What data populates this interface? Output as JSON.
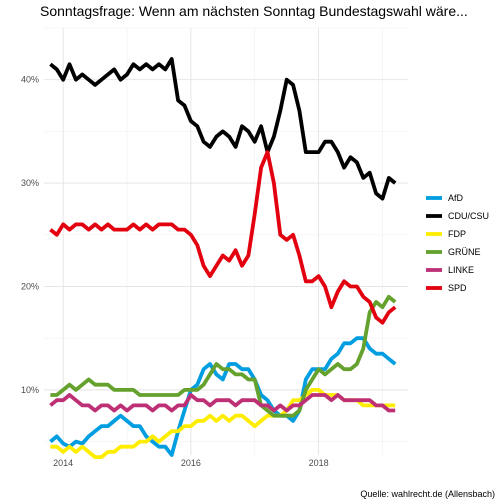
{
  "chart_data": {
    "type": "line",
    "title": "Sonntagsfrage: Wenn am nächsten Sonntag Bundestagswahl wäre...",
    "caption": "Quelle: wahlrecht.de (Allensbach)",
    "xlabel": "",
    "ylabel": "",
    "xlim": [
      2013.7,
      2019.4
    ],
    "ylim": [
      3.7,
      45
    ],
    "x_ticks": [
      {
        "value": 2014,
        "label": "2014"
      },
      {
        "value": 2016,
        "label": "2016"
      },
      {
        "value": 2018,
        "label": "2018"
      }
    ],
    "y_ticks": [
      {
        "value": 10,
        "label": "10%"
      },
      {
        "value": 20,
        "label": "20%"
      },
      {
        "value": 30,
        "label": "30%"
      },
      {
        "value": 40,
        "label": "40%"
      }
    ],
    "grid": true,
    "legend_position": "right",
    "series": [
      {
        "name": "AfD",
        "color": "#009ee0",
        "x": [
          2013.8,
          2013.9,
          2014.0,
          2014.1,
          2014.2,
          2014.3,
          2014.4,
          2014.5,
          2014.6,
          2014.7,
          2014.8,
          2014.9,
          2015.0,
          2015.1,
          2015.2,
          2015.3,
          2015.4,
          2015.5,
          2015.6,
          2015.7,
          2015.8,
          2015.9,
          2016.0,
          2016.1,
          2016.2,
          2016.3,
          2016.4,
          2016.5,
          2016.6,
          2016.7,
          2016.8,
          2016.9,
          2017.0,
          2017.1,
          2017.2,
          2017.3,
          2017.4,
          2017.5,
          2017.6,
          2017.7,
          2017.8,
          2017.9,
          2018.0,
          2018.1,
          2018.2,
          2018.3,
          2018.4,
          2018.5,
          2018.6,
          2018.7,
          2018.8,
          2018.9,
          2019.0,
          2019.1,
          2019.2
        ],
        "values": [
          5,
          5.5,
          4.8,
          4.5,
          5,
          4.8,
          5.5,
          6,
          6.5,
          6.5,
          7,
          7.5,
          7,
          6.5,
          6.5,
          5.5,
          5,
          4.5,
          4.5,
          3.7,
          6,
          8,
          10,
          10.5,
          12,
          12.5,
          11.5,
          11,
          12.5,
          12.5,
          12,
          12,
          11,
          9.5,
          9,
          8,
          7.5,
          7.5,
          7,
          8,
          11,
          12,
          12,
          12,
          13,
          13.5,
          14.5,
          14.5,
          15,
          15,
          14,
          13.5,
          13.5,
          13,
          12.5
        ]
      },
      {
        "name": "CDU/CSU",
        "color": "#000000",
        "x": [
          2013.8,
          2013.9,
          2014.0,
          2014.1,
          2014.2,
          2014.3,
          2014.4,
          2014.5,
          2014.6,
          2014.7,
          2014.8,
          2014.9,
          2015.0,
          2015.1,
          2015.2,
          2015.3,
          2015.4,
          2015.5,
          2015.6,
          2015.7,
          2015.8,
          2015.9,
          2016.0,
          2016.1,
          2016.2,
          2016.3,
          2016.4,
          2016.5,
          2016.6,
          2016.7,
          2016.8,
          2016.9,
          2017.0,
          2017.1,
          2017.2,
          2017.3,
          2017.4,
          2017.5,
          2017.6,
          2017.7,
          2017.8,
          2017.9,
          2018.0,
          2018.1,
          2018.2,
          2018.3,
          2018.4,
          2018.5,
          2018.6,
          2018.7,
          2018.8,
          2018.9,
          2019.0,
          2019.1,
          2019.2
        ],
        "values": [
          41.5,
          41,
          40,
          41.5,
          40,
          40.5,
          40,
          39.5,
          40,
          40.5,
          41,
          40,
          40.5,
          41.5,
          41,
          41.5,
          41,
          41.5,
          41,
          42,
          38,
          37.5,
          36,
          35.5,
          34,
          33.5,
          34.5,
          35,
          34.5,
          33.5,
          35.5,
          35,
          34,
          35.5,
          33,
          34.5,
          37,
          40,
          39.5,
          37,
          33,
          33,
          33,
          34,
          34,
          33,
          31.5,
          32.5,
          32,
          30.5,
          31,
          29,
          28.5,
          30.5,
          30
        ]
      },
      {
        "name": "FDP",
        "color": "#ffed00",
        "x": [
          2013.8,
          2013.9,
          2014.0,
          2014.1,
          2014.2,
          2014.3,
          2014.4,
          2014.5,
          2014.6,
          2014.7,
          2014.8,
          2014.9,
          2015.0,
          2015.1,
          2015.2,
          2015.3,
          2015.4,
          2015.5,
          2015.6,
          2015.7,
          2015.8,
          2015.9,
          2016.0,
          2016.1,
          2016.2,
          2016.3,
          2016.4,
          2016.5,
          2016.6,
          2016.7,
          2016.8,
          2016.9,
          2017.0,
          2017.1,
          2017.2,
          2017.3,
          2017.4,
          2017.5,
          2017.6,
          2017.7,
          2017.8,
          2017.9,
          2018.0,
          2018.1,
          2018.2,
          2018.3,
          2018.4,
          2018.5,
          2018.6,
          2018.7,
          2018.8,
          2018.9,
          2019.0,
          2019.1,
          2019.2
        ],
        "values": [
          4.5,
          4.5,
          4,
          4.5,
          4,
          4.5,
          4,
          3.5,
          3.5,
          4,
          4,
          4.5,
          4.5,
          4.5,
          5,
          5,
          5.5,
          5,
          5.5,
          6,
          6,
          6.5,
          6.5,
          7,
          7,
          7.5,
          7,
          7.5,
          7,
          7.5,
          7.5,
          7,
          6.5,
          7,
          7.5,
          7.5,
          7.5,
          8,
          9,
          9,
          9.5,
          10,
          10,
          9.5,
          9.5,
          9.5,
          9,
          9,
          9,
          8.5,
          8.5,
          8.5,
          8.5,
          8.5,
          8.5
        ]
      },
      {
        "name": "GRÜNE",
        "color": "#64a12d",
        "x": [
          2013.8,
          2013.9,
          2014.0,
          2014.1,
          2014.2,
          2014.3,
          2014.4,
          2014.5,
          2014.6,
          2014.7,
          2014.8,
          2014.9,
          2015.0,
          2015.1,
          2015.2,
          2015.3,
          2015.4,
          2015.5,
          2015.6,
          2015.7,
          2015.8,
          2015.9,
          2016.0,
          2016.1,
          2016.2,
          2016.3,
          2016.4,
          2016.5,
          2016.6,
          2016.7,
          2016.8,
          2016.9,
          2017.0,
          2017.1,
          2017.2,
          2017.3,
          2017.4,
          2017.5,
          2017.6,
          2017.7,
          2017.8,
          2017.9,
          2018.0,
          2018.1,
          2018.2,
          2018.3,
          2018.4,
          2018.5,
          2018.6,
          2018.7,
          2018.8,
          2018.9,
          2019.0,
          2019.1,
          2019.2
        ],
        "values": [
          9.5,
          9.5,
          10,
          10.5,
          10,
          10.5,
          11,
          10.5,
          10.5,
          10.5,
          10,
          10,
          10,
          10,
          9.5,
          9.5,
          9.5,
          9.5,
          9.5,
          9.5,
          9.5,
          10,
          10,
          10,
          10.5,
          11.5,
          12.5,
          12,
          12,
          11.5,
          11.5,
          11,
          11,
          8.5,
          8,
          7.5,
          7.5,
          7.5,
          7.5,
          8,
          10,
          11,
          12,
          11.5,
          12,
          12.5,
          12,
          12,
          12.5,
          14,
          17.5,
          18.5,
          18,
          19,
          18.5
        ]
      },
      {
        "name": "LINKE",
        "color": "#be3075",
        "x": [
          2013.8,
          2013.9,
          2014.0,
          2014.1,
          2014.2,
          2014.3,
          2014.4,
          2014.5,
          2014.6,
          2014.7,
          2014.8,
          2014.9,
          2015.0,
          2015.1,
          2015.2,
          2015.3,
          2015.4,
          2015.5,
          2015.6,
          2015.7,
          2015.8,
          2015.9,
          2016.0,
          2016.1,
          2016.2,
          2016.3,
          2016.4,
          2016.5,
          2016.6,
          2016.7,
          2016.8,
          2016.9,
          2017.0,
          2017.1,
          2017.2,
          2017.3,
          2017.4,
          2017.5,
          2017.6,
          2017.7,
          2017.8,
          2017.9,
          2018.0,
          2018.1,
          2018.2,
          2018.3,
          2018.4,
          2018.5,
          2018.6,
          2018.7,
          2018.8,
          2018.9,
          2019.0,
          2019.1,
          2019.2
        ],
        "values": [
          8.5,
          9,
          9,
          9.5,
          9,
          8.5,
          8.5,
          8,
          8.5,
          8.5,
          8,
          8.5,
          8,
          8.5,
          8.5,
          8.5,
          8,
          8.5,
          8.5,
          8,
          8.5,
          8.5,
          9.5,
          9,
          9,
          8.5,
          9,
          9,
          9,
          8.5,
          9,
          9,
          9,
          8.5,
          8.5,
          8,
          8.5,
          8,
          8.5,
          8.5,
          9,
          9.5,
          9.5,
          9.5,
          9,
          9.5,
          9,
          9,
          9,
          9,
          9,
          8.5,
          8.5,
          8,
          8
        ]
      },
      {
        "name": "SPD",
        "color": "#e3000f",
        "x": [
          2013.8,
          2013.9,
          2014.0,
          2014.1,
          2014.2,
          2014.3,
          2014.4,
          2014.5,
          2014.6,
          2014.7,
          2014.8,
          2014.9,
          2015.0,
          2015.1,
          2015.2,
          2015.3,
          2015.4,
          2015.5,
          2015.6,
          2015.7,
          2015.8,
          2015.9,
          2016.0,
          2016.1,
          2016.2,
          2016.3,
          2016.4,
          2016.5,
          2016.6,
          2016.7,
          2016.8,
          2016.9,
          2017.0,
          2017.1,
          2017.2,
          2017.3,
          2017.4,
          2017.5,
          2017.6,
          2017.7,
          2017.8,
          2017.9,
          2018.0,
          2018.1,
          2018.2,
          2018.3,
          2018.4,
          2018.5,
          2018.6,
          2018.7,
          2018.8,
          2018.9,
          2019.0,
          2019.1,
          2019.2
        ],
        "values": [
          25.5,
          25,
          26,
          25.5,
          26,
          26,
          25.5,
          26,
          25.5,
          26,
          25.5,
          25.5,
          25.5,
          26,
          25.5,
          26,
          25.5,
          26,
          26,
          26,
          25.5,
          25.5,
          25,
          24,
          22,
          21,
          22,
          23,
          22.5,
          23.5,
          22,
          23,
          27,
          31.5,
          33,
          30,
          25,
          24.5,
          25,
          23,
          20.5,
          20.5,
          21,
          20,
          18,
          19.5,
          20.5,
          20,
          20,
          19,
          18.5,
          17,
          16.5,
          17.5,
          18
        ]
      }
    ]
  }
}
